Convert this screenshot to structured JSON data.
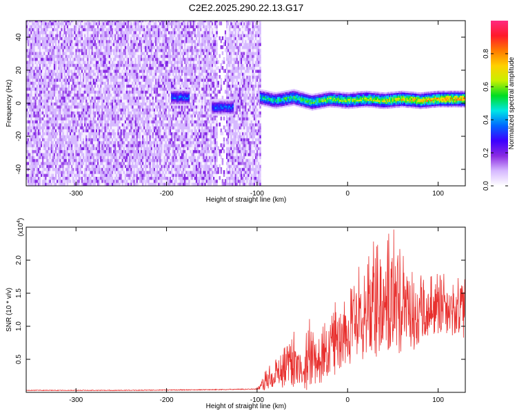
{
  "figure_title": "C2E2.2025.290.22.13.G17",
  "chart_data": [
    {
      "type": "heatmap",
      "xlabel": "Height of straight line (km)",
      "ylabel": "Frequency (Hz)",
      "xlim": [
        -355,
        130
      ],
      "ylim": [
        -50,
        50
      ],
      "xticks": [
        -300,
        -200,
        -100,
        0,
        100
      ],
      "yticks": [
        -40,
        -20,
        0,
        20,
        40
      ],
      "xtick_labels": [
        "-300",
        "-200",
        "-100",
        "0",
        "100"
      ],
      "ytick_labels": [
        "-40",
        "-20",
        "0",
        "20",
        "40"
      ],
      "colorbar": {
        "label": "Normalized spectral amplitude",
        "range": [
          0,
          1
        ],
        "ticks": [
          0.0,
          0.2,
          0.4,
          0.6,
          0.8
        ],
        "tick_labels": [
          "0.0",
          "0.2",
          "0.4",
          "0.6",
          "0.8"
        ],
        "stops": [
          "#ffffff",
          "#d6b8ff",
          "#8a2be2",
          "#3c00ff",
          "#0066ff",
          "#00e6e6",
          "#00dd22",
          "#c8f000",
          "#ffd000",
          "#ff7a00",
          "#ff1a2a",
          "#ff2a80"
        ]
      },
      "noise_region": {
        "x_range": [
          -355,
          -97
        ],
        "amplitude": [
          0.05,
          0.2
        ]
      },
      "noise_gap": {
        "x_range": [
          -145,
          -135
        ]
      },
      "signal_segments": [
        {
          "x_range": [
            -195,
            -175
          ],
          "freq_hz": 3,
          "amplitude": 0.4
        },
        {
          "x_range": [
            -150,
            -127
          ],
          "freq_hz": -3,
          "amplitude": 0.38
        },
        {
          "x_range": [
            -97,
            130
          ],
          "freq_hz": 2,
          "amplitude_start": 0.5,
          "amplitude_end": 0.85
        }
      ],
      "signal_track": [
        {
          "x": -97,
          "freq": 3
        },
        {
          "x": -80,
          "freq": 1
        },
        {
          "x": -60,
          "freq": 3
        },
        {
          "x": -40,
          "freq": 0
        },
        {
          "x": -20,
          "freq": 2
        },
        {
          "x": 0,
          "freq": 1
        },
        {
          "x": 20,
          "freq": 2
        },
        {
          "x": 40,
          "freq": 1
        },
        {
          "x": 60,
          "freq": 2
        },
        {
          "x": 80,
          "freq": 1
        },
        {
          "x": 100,
          "freq": 2
        },
        {
          "x": 130,
          "freq": 2
        }
      ]
    },
    {
      "type": "line",
      "xlabel": "Height of straight line (km)",
      "ylabel": "SNR (10 * v/v)",
      "y_multiplier_label": "(x10",
      "y_multiplier_exp": "4",
      "y_multiplier_close": ")",
      "xlim": [
        -355,
        130
      ],
      "ylim": [
        0,
        2.5
      ],
      "xticks": [
        -300,
        -200,
        -100,
        0,
        100
      ],
      "yticks": [
        0.5,
        1.0,
        1.5,
        2.0
      ],
      "xtick_labels": [
        "-300",
        "-200",
        "-100",
        "0",
        "100"
      ],
      "ytick_labels": [
        "0.5",
        "1.0",
        "1.5",
        "2.0"
      ],
      "series_color": "#e8302e",
      "series": [
        {
          "name": "SNR",
          "x": [
            -355,
            -300,
            -250,
            -200,
            -150,
            -100,
            -90,
            -80,
            -70,
            -60,
            -50,
            -40,
            -30,
            -20,
            -10,
            0,
            10,
            20,
            30,
            40,
            50,
            60,
            70,
            80,
            90,
            100,
            110,
            120,
            130
          ],
          "mean": [
            0.03,
            0.03,
            0.03,
            0.035,
            0.04,
            0.05,
            0.15,
            0.25,
            0.3,
            0.38,
            0.3,
            0.42,
            0.4,
            0.6,
            0.75,
            0.85,
            1.0,
            1.1,
            1.25,
            1.35,
            1.3,
            1.2,
            1.15,
            1.15,
            1.2,
            1.25,
            1.2,
            1.15,
            1.25
          ],
          "max": [
            0.05,
            0.05,
            0.05,
            0.05,
            0.06,
            0.08,
            0.35,
            0.5,
            0.7,
            0.95,
            0.6,
            1.3,
            0.9,
            1.25,
            1.6,
            1.6,
            1.85,
            2.2,
            2.5,
            2.5,
            2.5,
            2.2,
            2.1,
            1.8,
            1.75,
            1.9,
            1.75,
            1.7,
            2.0
          ]
        }
      ]
    }
  ]
}
